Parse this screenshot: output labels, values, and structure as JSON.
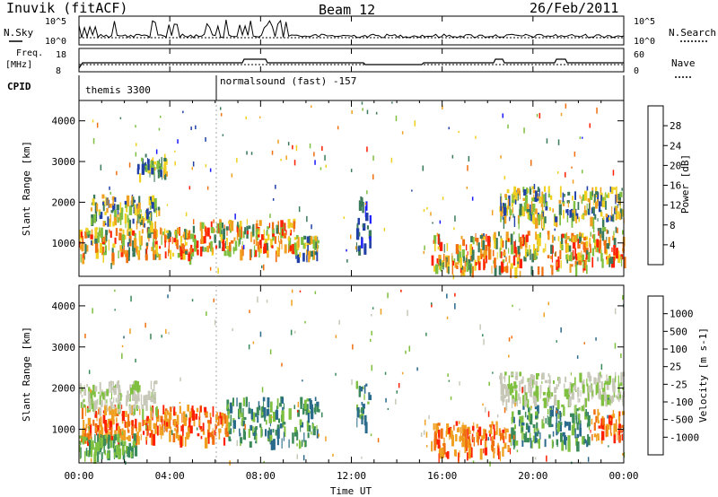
{
  "header": {
    "station": "Inuvik (fitACF)",
    "beam": "Beam 12",
    "date": "26/Feb/2011"
  },
  "summary_panel": {
    "nsky_label": "N.Sky",
    "nsearch_label": "N.Search",
    "freq_label": "Freq.",
    "freq_unit": "[MHz]",
    "nave_label": "Nave",
    "cpid_label": "CPID",
    "count_ticks": [
      "10^5",
      "10^0"
    ],
    "freq_ticks": [
      "18",
      "8"
    ],
    "nave_ticks": [
      "60",
      "0"
    ],
    "cpid_segments": [
      {
        "name": "themis 3300",
        "start_h": 0,
        "end_h": 6
      },
      {
        "name": "normalsound (fast) -157",
        "start_h": 6,
        "end_h": 24
      }
    ]
  },
  "colors": {
    "power_scale": [
      "#1a1aff",
      "#2040a8",
      "#3a7a5a",
      "#80c040",
      "#f0d020",
      "#f0a020",
      "#f07010",
      "#ff2000"
    ],
    "velocity_scale": [
      "#2040a8",
      "#2a6a8a",
      "#3a8a5a",
      "#80c040",
      "#c8c8b8",
      "#f0a020",
      "#f07010",
      "#ff2000"
    ]
  },
  "chart_data": [
    {
      "type": "heatmap",
      "title": "Power",
      "xlabel": "Time UT",
      "ylabel": "Slant Range [km]",
      "colorbar_label": "Power [dB]",
      "colorbar_ticks": [
        "28",
        "24",
        "20",
        "16",
        "12",
        "8",
        "4"
      ],
      "xlim": [
        0,
        24
      ],
      "ylim": [
        180,
        4500
      ],
      "yticks": [
        "4000",
        "3000",
        "2000",
        "1000"
      ],
      "xticks": [
        "00:00",
        "04:00",
        "08:00",
        "12:00",
        "16:00",
        "20:00",
        "00:00"
      ],
      "regions": [
        {
          "h0": 0.0,
          "h1": 5.0,
          "r0": 700,
          "r1": 1400,
          "level": "high"
        },
        {
          "h0": 5.0,
          "h1": 9.5,
          "r0": 800,
          "r1": 1600,
          "level": "high"
        },
        {
          "h0": 9.5,
          "h1": 10.5,
          "r0": 700,
          "r1": 1200,
          "level": "mid"
        },
        {
          "h0": 15.5,
          "h1": 22.5,
          "r0": 400,
          "r1": 1300,
          "level": "high"
        },
        {
          "h0": 22.5,
          "h1": 24.0,
          "r0": 600,
          "r1": 1400,
          "level": "high"
        },
        {
          "h0": 0.5,
          "h1": 3.5,
          "r0": 1500,
          "r1": 2200,
          "level": "mid"
        },
        {
          "h0": 2.5,
          "h1": 3.8,
          "r0": 2700,
          "r1": 3200,
          "level": "mid"
        },
        {
          "h0": 18.5,
          "h1": 24.0,
          "r0": 1600,
          "r1": 2400,
          "level": "mid"
        },
        {
          "h0": 12.2,
          "h1": 12.8,
          "r0": 900,
          "r1": 2200,
          "level": "low"
        }
      ]
    },
    {
      "type": "heatmap",
      "title": "Velocity",
      "xlabel": "Time UT",
      "ylabel": "Slant Range [km]",
      "colorbar_label": "Velocity [m s-1]",
      "colorbar_ticks": [
        "1000",
        "500",
        "100",
        "25",
        "-25",
        "-100",
        "-500",
        "-1000"
      ],
      "xlim": [
        0,
        24
      ],
      "ylim": [
        180,
        4500
      ],
      "yticks": [
        "4000",
        "3000",
        "2000",
        "1000"
      ],
      "xticks": [
        "00:00",
        "04:00",
        "08:00",
        "12:00",
        "16:00",
        "20:00",
        "00:00"
      ],
      "regions": [
        {
          "h0": 0.0,
          "h1": 6.5,
          "r0": 800,
          "r1": 1600,
          "level": "neg"
        },
        {
          "h0": 6.5,
          "h1": 10.5,
          "r0": 700,
          "r1": 1800,
          "level": "pos"
        },
        {
          "h0": 0.0,
          "h1": 2.5,
          "r0": 400,
          "r1": 900,
          "level": "posweak"
        },
        {
          "h0": 15.5,
          "h1": 19.0,
          "r0": 400,
          "r1": 1200,
          "level": "neg"
        },
        {
          "h0": 19.0,
          "h1": 22.5,
          "r0": 700,
          "r1": 1600,
          "level": "pos"
        },
        {
          "h0": 22.5,
          "h1": 24.0,
          "r0": 800,
          "r1": 1500,
          "level": "neg"
        },
        {
          "h0": 0.0,
          "h1": 3.5,
          "r0": 1500,
          "r1": 2200,
          "level": "near0"
        },
        {
          "h0": 18.5,
          "h1": 24.0,
          "r0": 1700,
          "r1": 2400,
          "level": "near0"
        },
        {
          "h0": 12.2,
          "h1": 12.8,
          "r0": 1000,
          "r1": 2200,
          "level": "pos"
        }
      ]
    }
  ],
  "axis": {
    "x_title": "Time UT"
  }
}
